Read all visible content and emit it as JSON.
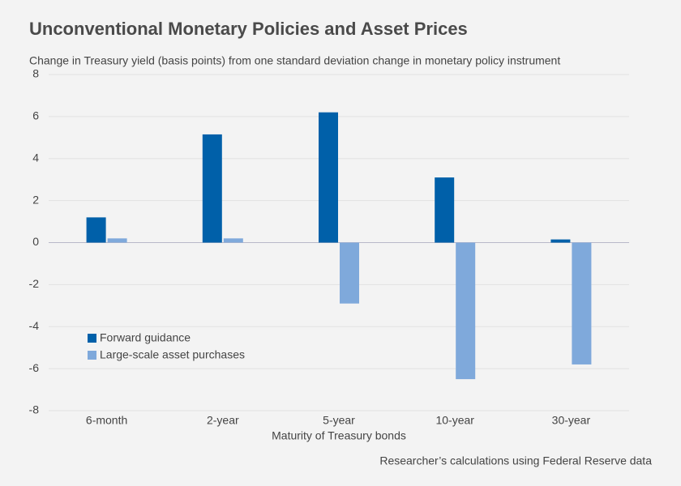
{
  "chart_data": {
    "type": "bar",
    "title": "Unconventional Monetary Policies and Asset Prices",
    "subtitle": "Change in Treasury yield (basis points) from one standard deviation change in monetary policy instrument",
    "x_label": "Maturity of Treasury bonds",
    "source": "Researcher’s calculations using Federal Reserve data",
    "categories": [
      "6-month",
      "2-year",
      "5-year",
      "10-year",
      "30-year"
    ],
    "series": [
      {
        "name": "Forward guidance",
        "color": "#0060a9",
        "values": [
          1.2,
          5.15,
          6.2,
          3.1,
          0.15
        ]
      },
      {
        "name": "Large-scale asset purchases",
        "color": "#7fa9db",
        "values": [
          0.2,
          0.2,
          -2.9,
          -6.5,
          -5.8
        ]
      }
    ],
    "ylim": [
      -8,
      8
    ],
    "yticks": [
      -8,
      -6,
      -4,
      -2,
      0,
      2,
      4,
      6,
      8
    ],
    "grid": true,
    "legend": "lower-left"
  }
}
